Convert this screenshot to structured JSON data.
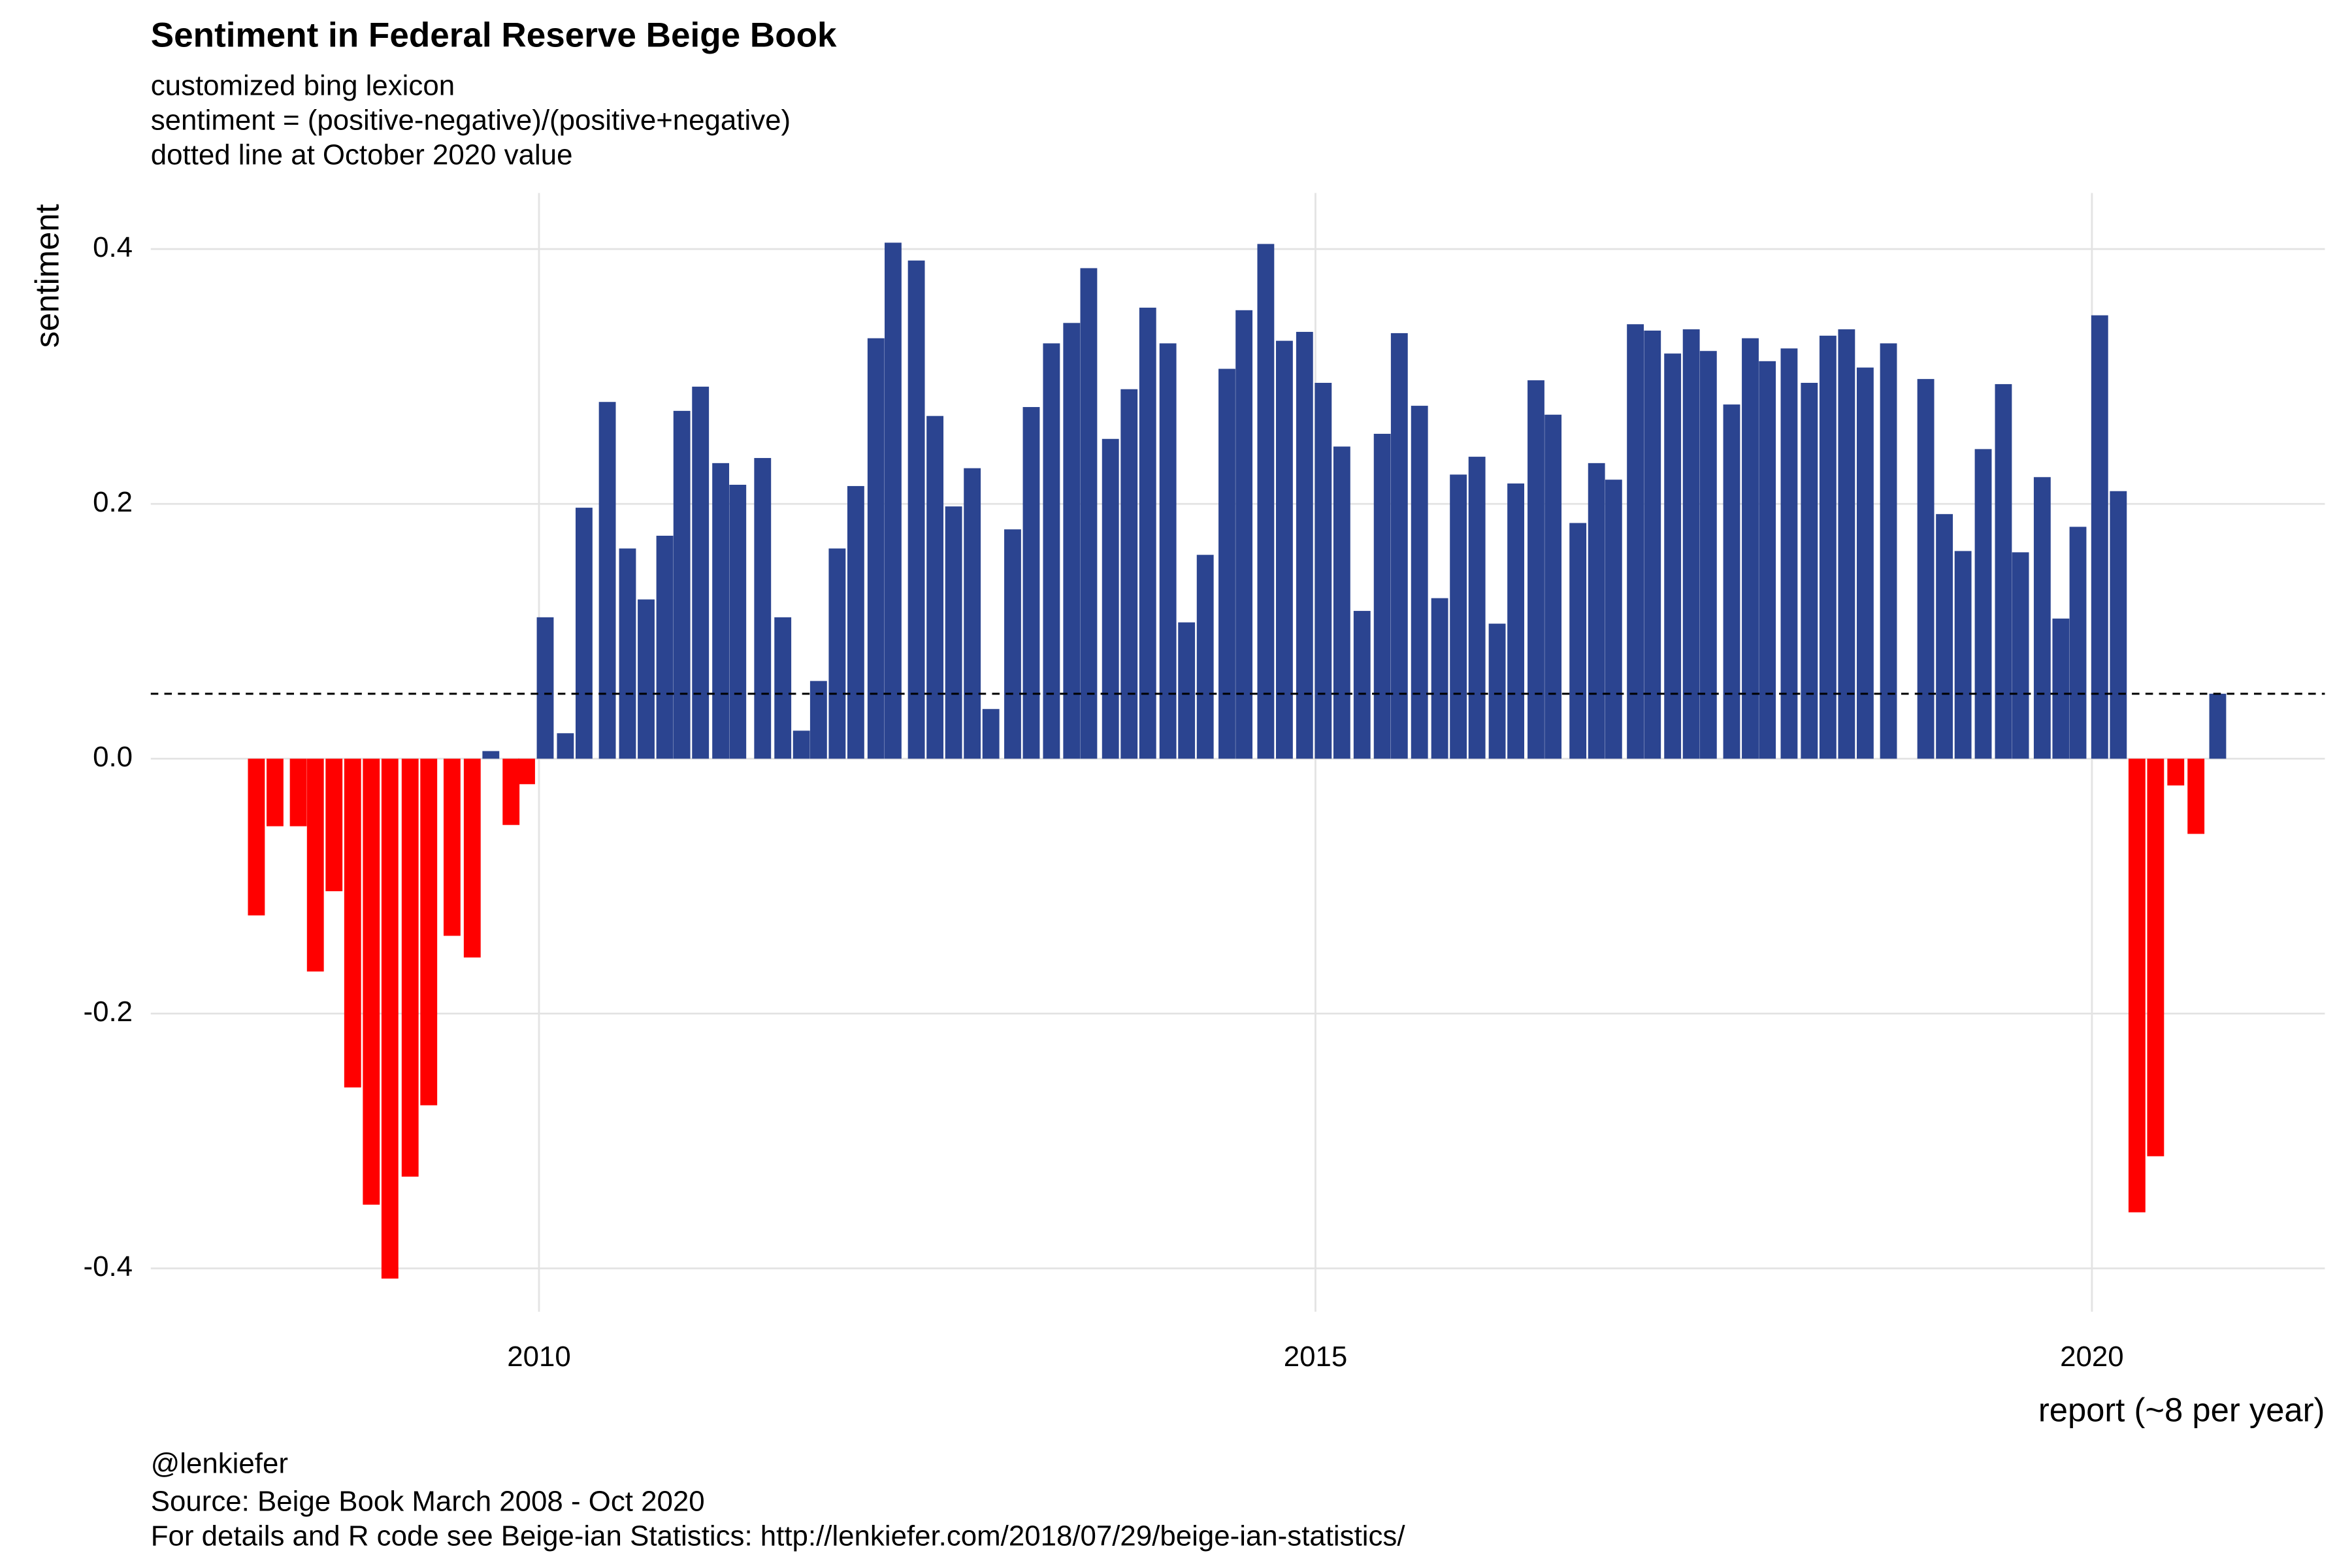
{
  "chart_data": {
    "type": "bar",
    "title": "Sentiment in Federal Reserve Beige Book",
    "subtitle": [
      "customized bing lexicon",
      "sentiment = (positive-negative)/(positive+negative)",
      "dotted line at October 2020 value"
    ],
    "ylabel": "sentiment",
    "xlabel": "report (~8 per year)",
    "caption": [
      "@lenkiefer",
      "Source: Beige Book March 2008 - Oct 2020",
      "For details and R code see Beige-ian Statistics: http://lenkiefer.com/2018/07/29/beige-ian-statistics/"
    ],
    "x": [
      2008.18,
      2008.3,
      2008.45,
      2008.56,
      2008.68,
      2008.8,
      2008.92,
      2009.04,
      2009.17,
      2009.29,
      2009.44,
      2009.57,
      2009.69,
      2009.82,
      2009.92,
      2010.04,
      2010.17,
      2010.29,
      2010.44,
      2010.57,
      2010.69,
      2010.81,
      2010.92,
      2011.04,
      2011.17,
      2011.28,
      2011.44,
      2011.57,
      2011.69,
      2011.8,
      2011.92,
      2012.04,
      2012.17,
      2012.28,
      2012.43,
      2012.55,
      2012.67,
      2012.79,
      2012.91,
      2013.05,
      2013.17,
      2013.3,
      2013.43,
      2013.54,
      2013.68,
      2013.8,
      2013.92,
      2014.05,
      2014.17,
      2014.29,
      2014.43,
      2014.54,
      2014.68,
      2014.8,
      2014.93,
      2015.05,
      2015.17,
      2015.3,
      2015.43,
      2015.54,
      2015.67,
      2015.8,
      2015.92,
      2016.04,
      2016.17,
      2016.29,
      2016.42,
      2016.53,
      2016.69,
      2016.81,
      2016.92,
      2017.06,
      2017.17,
      2017.3,
      2017.42,
      2017.53,
      2017.68,
      2017.8,
      2017.91,
      2018.05,
      2018.18,
      2018.3,
      2018.42,
      2018.54,
      2018.69,
      2018.93,
      2019.05,
      2019.17,
      2019.3,
      2019.43,
      2019.54,
      2019.68,
      2019.8,
      2019.91,
      2020.05,
      2020.17,
      2020.29,
      2020.41,
      2020.54,
      2020.67,
      2020.81
    ],
    "values": [
      -0.123,
      -0.053,
      -0.053,
      -0.167,
      -0.104,
      -0.258,
      -0.35,
      -0.408,
      -0.328,
      -0.272,
      -0.139,
      -0.156,
      0.006,
      -0.052,
      -0.02,
      0.111,
      0.02,
      0.197,
      0.28,
      0.165,
      0.125,
      0.175,
      0.273,
      0.292,
      0.232,
      0.215,
      0.236,
      0.111,
      0.022,
      0.061,
      0.165,
      0.214,
      0.33,
      0.405,
      0.391,
      0.269,
      0.198,
      0.228,
      0.039,
      0.18,
      0.276,
      0.326,
      0.342,
      0.385,
      0.251,
      0.29,
      0.354,
      0.326,
      0.107,
      0.16,
      0.306,
      0.352,
      0.404,
      0.328,
      0.335,
      0.295,
      0.245,
      0.116,
      0.255,
      0.334,
      0.277,
      0.126,
      0.223,
      0.237,
      0.106,
      0.216,
      0.297,
      0.27,
      0.185,
      0.232,
      0.219,
      0.341,
      0.336,
      0.318,
      0.337,
      0.32,
      0.278,
      0.33,
      0.312,
      0.322,
      0.295,
      0.332,
      0.337,
      0.307,
      0.326,
      0.298,
      0.192,
      0.163,
      0.243,
      0.294,
      0.162,
      0.221,
      0.11,
      0.182,
      0.348,
      0.21,
      -0.356,
      -0.312,
      -0.021,
      -0.059,
      0.051
    ],
    "positive_color": "#2b4490",
    "negative_color": "#ff0000",
    "reference_line": 0.051,
    "xlim": [
      2007.5,
      2021.5
    ],
    "xticks": [
      2010,
      2015,
      2020
    ],
    "ylim": [
      -0.434,
      0.444
    ],
    "yticks": [
      -0.4,
      -0.2,
      {
        "value": 0,
        "label": "0.0"
      },
      0.2,
      0.4
    ],
    "grid": true
  }
}
